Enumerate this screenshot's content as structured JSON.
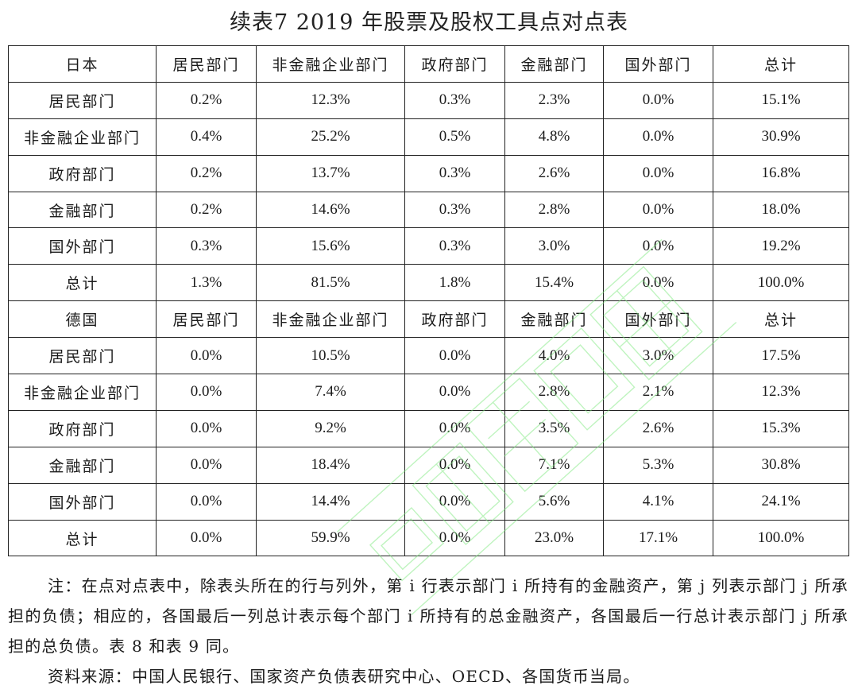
{
  "title": "续表7  2019 年股票及股权工具点对点表",
  "columns": [
    "居民部门",
    "非金融企业部门",
    "政府部门",
    "金融部门",
    "国外部门",
    "总计"
  ],
  "sections": [
    {
      "country": "日本",
      "rows": [
        {
          "label": "居民部门",
          "values": [
            "0.2%",
            "12.3%",
            "0.3%",
            "2.3%",
            "0.0%",
            "15.1%"
          ]
        },
        {
          "label": "非金融企业部门",
          "values": [
            "0.4%",
            "25.2%",
            "0.5%",
            "4.8%",
            "0.0%",
            "30.9%"
          ]
        },
        {
          "label": "政府部门",
          "values": [
            "0.2%",
            "13.7%",
            "0.3%",
            "2.6%",
            "0.0%",
            "16.8%"
          ]
        },
        {
          "label": "金融部门",
          "values": [
            "0.2%",
            "14.6%",
            "0.3%",
            "2.8%",
            "0.0%",
            "18.0%"
          ]
        },
        {
          "label": "国外部门",
          "values": [
            "0.3%",
            "15.6%",
            "0.3%",
            "3.0%",
            "0.0%",
            "19.2%"
          ]
        },
        {
          "label": "总计",
          "values": [
            "1.3%",
            "81.5%",
            "1.8%",
            "15.4%",
            "0.0%",
            "100.0%"
          ]
        }
      ]
    },
    {
      "country": "德国",
      "rows": [
        {
          "label": "居民部门",
          "values": [
            "0.0%",
            "10.5%",
            "0.0%",
            "4.0%",
            "3.0%",
            "17.5%"
          ]
        },
        {
          "label": "非金融企业部门",
          "values": [
            "0.0%",
            "7.4%",
            "0.0%",
            "2.8%",
            "2.1%",
            "12.3%"
          ]
        },
        {
          "label": "政府部门",
          "values": [
            "0.0%",
            "9.2%",
            "0.0%",
            "3.5%",
            "2.6%",
            "15.3%"
          ]
        },
        {
          "label": "金融部门",
          "values": [
            "0.0%",
            "18.4%",
            "0.0%",
            "7.1%",
            "5.3%",
            "30.8%"
          ]
        },
        {
          "label": "国外部门",
          "values": [
            "0.0%",
            "14.4%",
            "0.0%",
            "5.6%",
            "4.1%",
            "24.1%"
          ]
        },
        {
          "label": "总计",
          "values": [
            "0.0%",
            "59.9%",
            "0.0%",
            "23.0%",
            "17.1%",
            "100.0%"
          ]
        }
      ]
    }
  ],
  "note": "注：在点对点表中，除表头所在的行与列外，第 i 行表示部门 i 所持有的金融资产，第 j 列表示部门 j 所承担的负债；相应的，各国最后一列总计表示每个部门 i 所持有的总金融资产，各国最后一行总计表示部门 j 所承担的总负债。表 8 和表 9 同。",
  "source": "资料来源：中国人民银行、国家资产负债表研究中心、OECD、各国货币当局。",
  "watermark_color": "#7ee87e"
}
